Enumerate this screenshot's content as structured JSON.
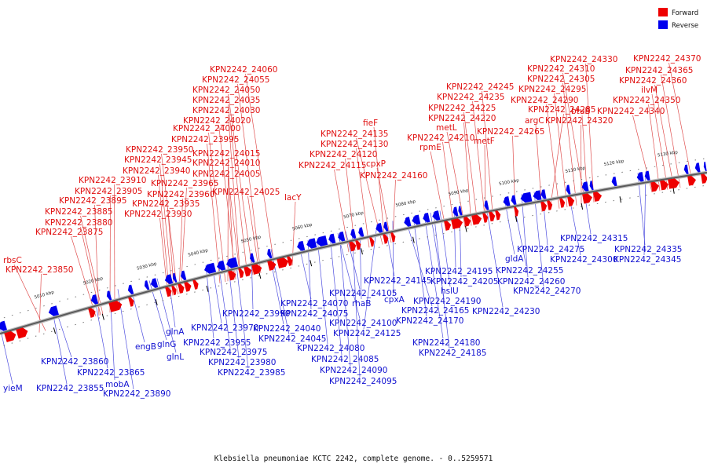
{
  "legend": [
    {
      "label": "Forward",
      "color": "#ee0000"
    },
    {
      "label": "Reverse",
      "color": "#0000ee"
    }
  ],
  "caption": "Klebsiella pneumoniae KCTC 2242, complete genome. - 0..5259571",
  "ticks": [
    "5010 kbp",
    "5020 kbp",
    "5030 kbp",
    "5040 kbp",
    "5050 kbp",
    "5060 kbp",
    "5070 kbp",
    "5080 kbp",
    "5090 kbp",
    "5100 kbp",
    "5110 kbp",
    "5120 kbp",
    "5130 kbp"
  ],
  "forward_labels": [
    "rbsC",
    "KPN2242_23850",
    "KPN2242_23875",
    "KPN2242_23880",
    "KPN2242_23885",
    "KPN2242_23895",
    "KPN2242_23905",
    "KPN2242_23910",
    "KPN2242_23930",
    "KPN2242_23935",
    "KPN2242_23960",
    "KPN2242_23965",
    "KPN2242_23940",
    "KPN2242_23945",
    "KPN2242_23950",
    "KPN2242_23995",
    "KPN2242_24000",
    "KPN2242_24020",
    "KPN2242_24030",
    "KPN2242_24035",
    "KPN2242_24050",
    "KPN2242_24055",
    "KPN2242_24060",
    "KPN2242_24015",
    "KPN2242_24010",
    "KPN2242_24005",
    "KPN2242_24025",
    "lacY",
    "KPN2242_24115",
    "KPN2242_24120",
    "KPN2242_24130",
    "KPN2242_24135",
    "fieF",
    "cpxP",
    "KPN2242_24160",
    "rpmE",
    "KPN2242_24210",
    "metL",
    "metF",
    "KPN2242_24220",
    "KPN2242_24225",
    "KPN2242_24235",
    "KPN2242_24245",
    "KPN2242_24265",
    "argC",
    "KPN2242_24285",
    "KPN2242_24290",
    "KPN2242_24295",
    "KPN2242_24305",
    "KPN2242_24310",
    "KPN2242_24330",
    "btuB",
    "KPN2242_24320",
    "KPN2242_24340",
    "KPN2242_24350",
    "ilvM",
    "KPN2242_24360",
    "KPN2242_24365",
    "KPN2242_24370"
  ],
  "reverse_labels": [
    "yieM",
    "KPN2242_23855",
    "KPN2242_23860",
    "KPN2242_23865",
    "mobA",
    "KPN2242_23890",
    "engB",
    "glnG",
    "glnL",
    "glnA",
    "KPN2242_23955",
    "KPN2242_23970",
    "KPN2242_23975",
    "KPN2242_23980",
    "KPN2242_23985",
    "KPN2242_23990",
    "KPN2242_24040",
    "KPN2242_24045",
    "KPN2242_24070",
    "KPN2242_24075",
    "KPN2242_24080",
    "KPN2242_24085",
    "KPN2242_24090",
    "KPN2242_24095",
    "KPN2242_24100",
    "KPN2242_24105",
    "rhaB",
    "KPN2242_24125",
    "KPN2242_24145",
    "cpxA",
    "KPN2242_24165",
    "KPN2242_24170",
    "KPN2242_24180",
    "KPN2242_24185",
    "KPN2242_24190",
    "hslU",
    "KPN2242_24195",
    "KPN2242_24205",
    "KPN2242_24230",
    "gldA",
    "KPN2242_24255",
    "KPN2242_24260",
    "KPN2242_24270",
    "KPN2242_24275",
    "KPN2242_24300",
    "KPN2242_24315",
    "KPN2242_24335",
    "KPN2242_24345"
  ]
}
